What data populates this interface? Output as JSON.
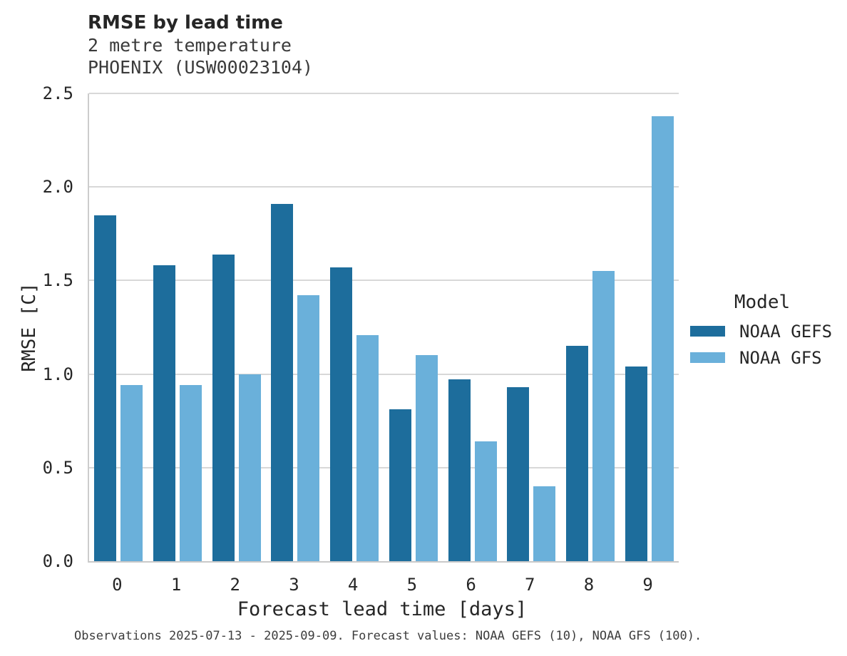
{
  "header": {
    "title": "RMSE by lead time",
    "subtitle_line1": "2 metre temperature",
    "subtitle_line2": "PHOENIX (USW00023104)"
  },
  "footer": {
    "caption": "Observations 2025-07-13 - 2025-09-09. Forecast values: NOAA GEFS (10), NOAA GFS (100)."
  },
  "legend": {
    "title": "Model"
  },
  "colors": {
    "noaa_gefs": "#1d6d9c",
    "noaa_gfs": "#6ab0da",
    "gridline": "#d8d8d8",
    "axis_spine": "#cccccc",
    "text": "#262626"
  },
  "chart_data": {
    "type": "bar",
    "title": "RMSE by lead time",
    "subtitle": [
      "2 metre temperature",
      "PHOENIX (USW00023104)"
    ],
    "categories": [
      "0",
      "1",
      "2",
      "3",
      "4",
      "5",
      "6",
      "7",
      "8",
      "9"
    ],
    "series": [
      {
        "name": "NOAA GEFS",
        "color": "#1d6d9c",
        "values": [
          1.85,
          1.58,
          1.64,
          1.91,
          1.57,
          0.81,
          0.97,
          0.93,
          1.15,
          1.04
        ]
      },
      {
        "name": "NOAA GFS",
        "color": "#6ab0da",
        "values": [
          0.94,
          0.94,
          1.0,
          1.42,
          1.21,
          1.1,
          0.64,
          0.4,
          1.55,
          2.38
        ]
      }
    ],
    "xlabel": "Forecast lead time [days]",
    "ylabel": "RMSE [C]",
    "ylim": [
      0,
      2.5
    ],
    "yticks": [
      0.0,
      0.5,
      1.0,
      1.5,
      2.0,
      2.5
    ],
    "grid": true,
    "legend_title": "Model",
    "legend_position": "right",
    "caption": "Observations 2025-07-13 - 2025-09-09. Forecast values: NOAA GEFS (10), NOAA GFS (100)."
  }
}
